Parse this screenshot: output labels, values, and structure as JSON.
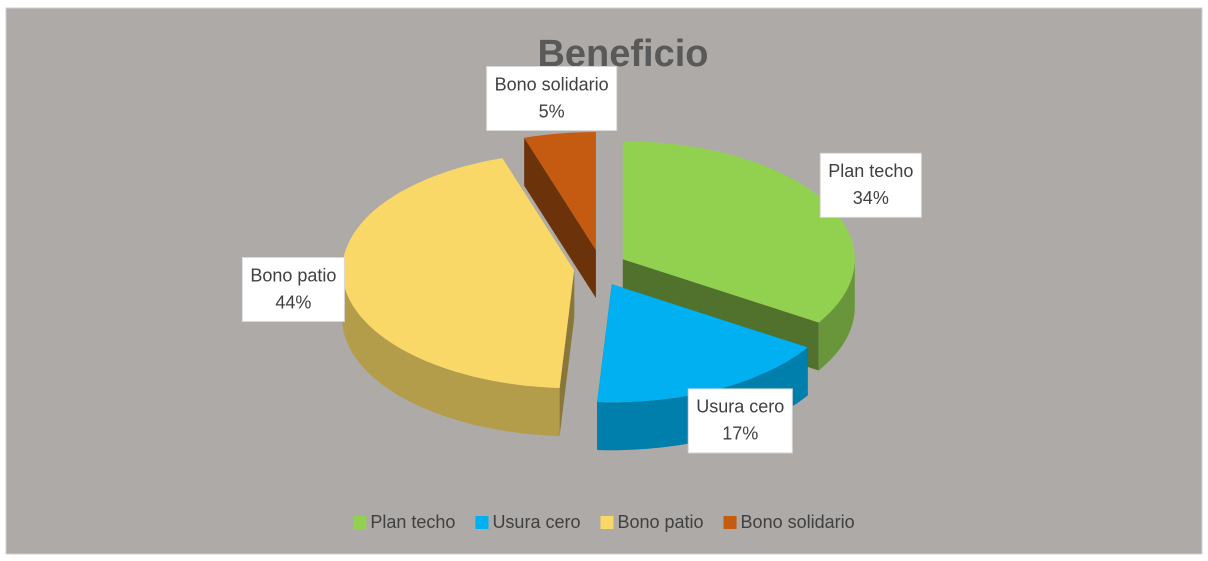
{
  "chart_data": {
    "type": "pie",
    "title": "Beneficio",
    "categories": [
      "Plan techo",
      "Usura cero",
      "Bono patio",
      "Bono solidario"
    ],
    "values": [
      34,
      17,
      44,
      5
    ],
    "value_labels": [
      "34%",
      "17%",
      "44%",
      "5%"
    ],
    "colors": [
      "#92d050",
      "#00b0f0",
      "#f9d867",
      "#c55a11"
    ],
    "legend": "bottom"
  }
}
